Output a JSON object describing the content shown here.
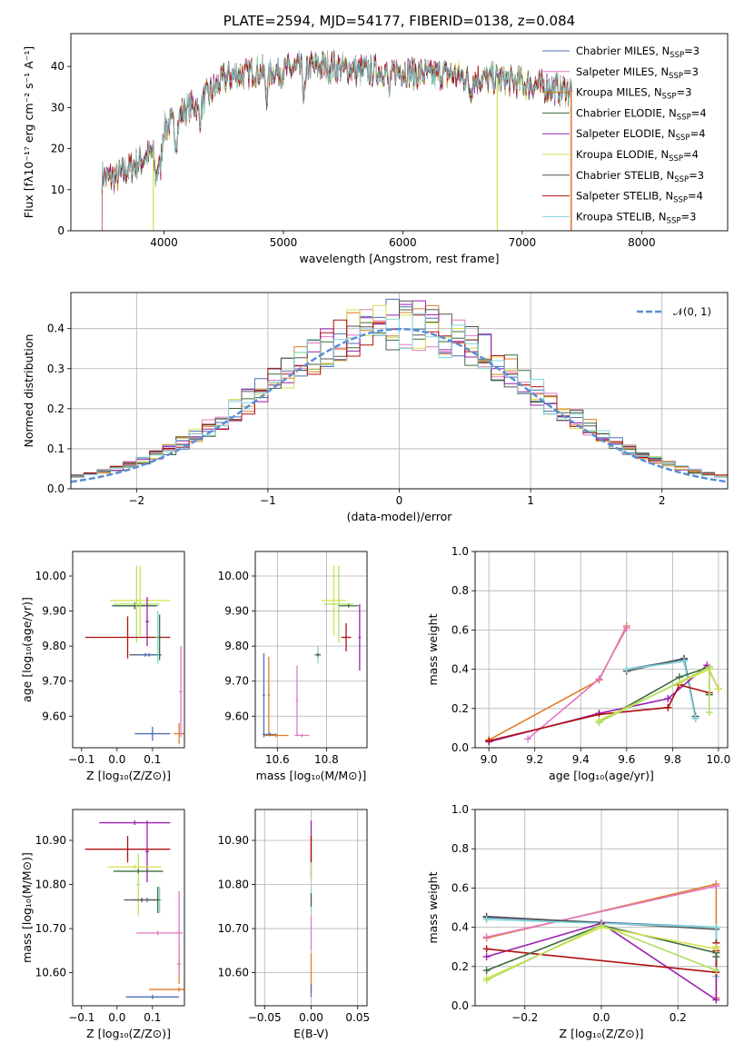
{
  "figure": {
    "title": "PLATE=2594, MJD=54177, FIBERID=0138, z=0.084"
  },
  "chart_data": [
    {
      "id": "spectrum",
      "type": "line",
      "title": "PLATE=2594, MJD=54177, FIBERID=0138, z=0.084",
      "xlabel": "wavelength [Angstrom, rest frame]",
      "ylabel": "Flux [fλ10⁻¹⁷ erg cm⁻² s⁻¹ A⁻¹]",
      "xlim": [
        3220,
        8720
      ],
      "ylim": [
        0,
        48
      ],
      "xticks": [
        4000,
        5000,
        6000,
        7000,
        8000
      ],
      "yticks": [
        0,
        10,
        20,
        30,
        40
      ],
      "grid": false,
      "legend_position": "top-right",
      "continuum": {
        "x": [
          3480,
          3600,
          3700,
          3800,
          3900,
          4000,
          4100,
          4200,
          4300,
          4400,
          4500,
          4600,
          4800,
          5000,
          5200,
          5400,
          5600,
          5800,
          6000,
          6200,
          6400,
          6600,
          6800,
          7000,
          7200,
          7400
        ],
        "y": [
          13,
          13,
          15,
          17,
          19,
          25,
          27,
          30,
          31,
          34,
          37,
          38,
          39,
          39,
          40,
          40,
          39,
          39,
          39,
          38,
          38,
          37,
          37,
          36,
          35,
          34
        ]
      },
      "series": [
        {
          "name": "Chabrier MILES, N_SSP=3",
          "color": "#4d6fb3"
        },
        {
          "name": "Salpeter MILES, N_SSP=3",
          "color": "#e377c2"
        },
        {
          "name": "Kroupa MILES, N_SSP=3",
          "color": "#c77d14"
        },
        {
          "name": "Chabrier ELODIE, N_SSP=4",
          "color": "#3d6b3d"
        },
        {
          "name": "Salpeter ELODIE, N_SSP=4",
          "color": "#9b1fb0"
        },
        {
          "name": "Kroupa ELODIE, N_SSP=4",
          "color": "#d4e04f"
        },
        {
          "name": "Chabrier STELIB, N_SSP=3",
          "color": "#555555"
        },
        {
          "name": "Salpeter STELIB, N_SSP=4",
          "color": "#b01010"
        },
        {
          "name": "Kroupa STELIB, N_SSP=3",
          "color": "#7fd6d6"
        }
      ]
    },
    {
      "id": "residuals",
      "type": "histogram",
      "xlabel": "(data-model)/error",
      "ylabel": "Normed distribution",
      "xlim": [
        -2.5,
        2.5
      ],
      "ylim": [
        0,
        0.49
      ],
      "xticks": [
        -2,
        -1,
        0,
        1,
        2
      ],
      "yticks": [
        0.0,
        0.1,
        0.2,
        0.3,
        0.4
      ],
      "grid": true,
      "legend_position": "top-right",
      "reference": {
        "name": "𝒩(0, 1)",
        "color": "#5b8ed6",
        "mean": 0,
        "sigma": 1
      },
      "bin_width": 0.1,
      "colors": [
        "#4d6fb3",
        "#e377c2",
        "#e07b28",
        "#3d6b3d",
        "#9b1fb0",
        "#d4e04f",
        "#555555",
        "#b01010",
        "#7fd6d6"
      ]
    },
    {
      "id": "age-vs-Z",
      "type": "scatter",
      "xlabel": "Z [log₁₀(Z/Z⊙)]",
      "ylabel": "age  [log₁₀(age/yr)]",
      "xlim": [
        -0.125,
        0.19
      ],
      "ylim": [
        9.51,
        10.07
      ],
      "xticks": [
        -0.1,
        0.0,
        0.1
      ],
      "yticks": [
        9.6,
        9.7,
        9.8,
        9.9,
        10.0
      ],
      "grid": false,
      "points": [
        {
          "x": 0.1,
          "y": 9.55,
          "xerr": 0.05,
          "yerr": 0.02,
          "color": "#4d6fb3"
        },
        {
          "x": 0.175,
          "y": 9.55,
          "xerr": 0.015,
          "yerr": 0.03,
          "color": "#e07b28"
        },
        {
          "x": 0.18,
          "y": 9.67,
          "xerr": 0.005,
          "yerr": 0.13,
          "color": "#e377c2"
        },
        {
          "x": 0.05,
          "y": 9.915,
          "xerr": 0.065,
          "yerr": 0.005,
          "color": "#4d6fb3"
        },
        {
          "x": 0.05,
          "y": 9.915,
          "xerr": 0.06,
          "yerr": 0.01,
          "color": "#3d6b3d"
        },
        {
          "x": 0.065,
          "y": 9.93,
          "xerr": 0.085,
          "yerr": 0.1,
          "color": "#d4e04f"
        },
        {
          "x": 0.055,
          "y": 9.92,
          "xerr": 0.065,
          "yerr": 0.11,
          "color": "#b0e060"
        },
        {
          "x": 0.085,
          "y": 9.87,
          "xerr": 0.005,
          "yerr": 0.07,
          "color": "#9b1fb0"
        },
        {
          "x": 0.03,
          "y": 9.825,
          "xerr": 0.12,
          "yerr": 0.06,
          "color": "#b01010"
        },
        {
          "x": 0.08,
          "y": 9.775,
          "xerr": 0.045,
          "yerr": 0.005,
          "color": "#555555"
        },
        {
          "x": 0.09,
          "y": 9.775,
          "xerr": 0.035,
          "yerr": 0.005,
          "color": "#4d6fb3"
        },
        {
          "x": 0.115,
          "y": 9.825,
          "xerr": 0.005,
          "yerr": 0.075,
          "color": "#7fd6d6"
        },
        {
          "x": 0.12,
          "y": 9.825,
          "xerr": 0.005,
          "yerr": 0.065,
          "color": "#3d6b3d"
        }
      ]
    },
    {
      "id": "age-vs-mass",
      "type": "scatter",
      "xlabel": "mass [log₁₀(M/M⊙)]",
      "ylabel": "",
      "xlim": [
        10.51,
        10.965
      ],
      "ylim": [
        9.51,
        10.07
      ],
      "xticks": [
        10.6,
        10.8
      ],
      "yticks": [
        9.6,
        9.7,
        9.8,
        9.9,
        10.0
      ],
      "grid": true,
      "points": [
        {
          "x": 10.545,
          "y": 9.66,
          "xerr": 0.005,
          "yerr": 0.12,
          "color": "#4d6fb3"
        },
        {
          "x": 10.565,
          "y": 9.66,
          "xerr": 0.005,
          "yerr": 0.11,
          "color": "#e07b28"
        },
        {
          "x": 10.68,
          "y": 9.645,
          "xerr": 0.005,
          "yerr": 0.1,
          "color": "#e377c2"
        },
        {
          "x": 10.57,
          "y": 9.548,
          "xerr": 0.03,
          "yerr": 0.005,
          "color": "#4d6fb3"
        },
        {
          "x": 10.595,
          "y": 9.545,
          "xerr": 0.05,
          "yerr": 0.005,
          "color": "#e07b28"
        },
        {
          "x": 10.7,
          "y": 9.545,
          "xerr": 0.03,
          "yerr": 0.005,
          "color": "#e377c2"
        },
        {
          "x": 10.85,
          "y": 9.92,
          "xerr": 0.06,
          "yerr": 0.11,
          "color": "#b0e060"
        },
        {
          "x": 10.83,
          "y": 9.93,
          "xerr": 0.05,
          "yerr": 0.1,
          "color": "#d4e04f"
        },
        {
          "x": 10.89,
          "y": 9.915,
          "xerr": 0.04,
          "yerr": 0.005,
          "color": "#3d6b3d"
        },
        {
          "x": 10.935,
          "y": 9.825,
          "xerr": 0.005,
          "yerr": 0.095,
          "color": "#9b1fb0"
        },
        {
          "x": 10.88,
          "y": 9.825,
          "xerr": 0.02,
          "yerr": 0.04,
          "color": "#b01010"
        },
        {
          "x": 10.765,
          "y": 9.775,
          "xerr": 0.015,
          "yerr": 0.025,
          "color": "#7fd6d6"
        },
        {
          "x": 10.765,
          "y": 9.775,
          "xerr": 0.01,
          "yerr": 0.005,
          "color": "#555555"
        }
      ]
    },
    {
      "id": "weight-vs-age",
      "type": "line",
      "xlabel": "age  [log₁₀(age/yr)]",
      "ylabel": "mass weight",
      "xlim": [
        8.94,
        10.04
      ],
      "ylim": [
        0,
        1
      ],
      "xticks": [
        9.0,
        9.2,
        9.4,
        9.6,
        9.8,
        10.0
      ],
      "yticks": [
        0.0,
        0.2,
        0.4,
        0.6,
        0.8,
        1.0
      ],
      "grid": true,
      "series": [
        {
          "color": "#e07b28",
          "x": [
            9.0,
            9.48,
            9.6
          ],
          "y": [
            0.04,
            0.345,
            0.62
          ]
        },
        {
          "color": "#e377c2",
          "x": [
            9.17,
            9.48,
            9.6
          ],
          "y": [
            0.045,
            0.35,
            0.61
          ]
        },
        {
          "color": "#4d6fb3",
          "x": [
            9.6,
            9.85,
            9.9
          ],
          "y": [
            0.4,
            0.45,
            0.15
          ]
        },
        {
          "color": "#555555",
          "x": [
            9.6,
            9.85,
            9.9
          ],
          "y": [
            0.39,
            0.455,
            0.16
          ]
        },
        {
          "color": "#7fd6d6",
          "x": [
            9.6,
            9.85,
            9.9
          ],
          "y": [
            0.4,
            0.44,
            0.15
          ]
        },
        {
          "color": "#9b1fb0",
          "x": [
            9.0,
            9.48,
            9.78,
            9.95,
            10.0
          ],
          "y": [
            0.03,
            0.175,
            0.25,
            0.42,
            0.3
          ]
        },
        {
          "color": "#b01010",
          "x": [
            9.0,
            9.48,
            9.78,
            9.83,
            9.96
          ],
          "y": [
            0.035,
            0.17,
            0.205,
            0.32,
            0.28
          ]
        },
        {
          "color": "#3d6b3d",
          "x": [
            9.48,
            9.83,
            9.96,
            9.96
          ],
          "y": [
            0.13,
            0.36,
            0.41,
            0.27
          ]
        },
        {
          "color": "#d4e04f",
          "x": [
            9.48,
            9.83,
            9.96,
            10.0
          ],
          "y": [
            0.14,
            0.33,
            0.4,
            0.3
          ]
        },
        {
          "color": "#b0e060",
          "x": [
            9.48,
            9.96,
            9.96
          ],
          "y": [
            0.13,
            0.41,
            0.18
          ]
        }
      ]
    },
    {
      "id": "mass-vs-Z",
      "type": "scatter",
      "xlabel": "Z [log₁₀(Z/Z⊙)]",
      "ylabel": "mass [log₁₀(M/M⊙)]",
      "xlim": [
        -0.125,
        0.19
      ],
      "ylim": [
        10.525,
        10.97
      ],
      "xticks": [
        -0.1,
        0.0,
        0.1
      ],
      "yticks": [
        10.6,
        10.7,
        10.8,
        10.9
      ],
      "grid": false,
      "points": [
        {
          "x": 0.1,
          "y": 10.545,
          "xerr": 0.075,
          "yerr": 0.005,
          "color": "#4d6fb3"
        },
        {
          "x": 0.175,
          "y": 10.562,
          "xerr": 0.085,
          "yerr": 0.005,
          "color": "#e07b28"
        },
        {
          "x": 0.175,
          "y": 10.62,
          "xerr": 0.005,
          "yerr": 0.045,
          "color": "#e07b28"
        },
        {
          "x": 0.175,
          "y": 10.69,
          "xerr": 0.01,
          "yerr": 0.095,
          "color": "#e377c2"
        },
        {
          "x": 0.115,
          "y": 10.69,
          "xerr": 0.06,
          "yerr": 0.005,
          "color": "#e377c2"
        },
        {
          "x": 0.05,
          "y": 10.94,
          "xerr": 0.1,
          "yerr": 0.005,
          "color": "#9b1fb0"
        },
        {
          "x": 0.085,
          "y": 10.875,
          "xerr": 0.005,
          "yerr": 0.07,
          "color": "#9b1fb0"
        },
        {
          "x": 0.03,
          "y": 10.88,
          "xerr": 0.12,
          "yerr": 0.03,
          "color": "#b01010"
        },
        {
          "x": 0.05,
          "y": 10.84,
          "xerr": 0.075,
          "yerr": 0.005,
          "color": "#d4e04f"
        },
        {
          "x": 0.06,
          "y": 10.8,
          "xerr": 0.005,
          "yerr": 0.07,
          "color": "#b0e060"
        },
        {
          "x": 0.06,
          "y": 10.83,
          "xerr": 0.07,
          "yerr": 0.005,
          "color": "#3d6b3d"
        },
        {
          "x": 0.085,
          "y": 10.765,
          "xerr": 0.04,
          "yerr": 0.005,
          "color": "#4d6fb3"
        },
        {
          "x": 0.07,
          "y": 10.765,
          "xerr": 0.05,
          "yerr": 0.005,
          "color": "#555555"
        },
        {
          "x": 0.12,
          "y": 10.765,
          "xerr": 0.005,
          "yerr": 0.03,
          "color": "#7fd6d6"
        },
        {
          "x": 0.115,
          "y": 10.765,
          "xerr": 0.005,
          "yerr": 0.03,
          "color": "#3d6b3d"
        }
      ]
    },
    {
      "id": "mass-vs-ebv",
      "type": "scatter",
      "xlabel": "E(B-V)",
      "ylabel": "",
      "xlim": [
        -0.06,
        0.06
      ],
      "ylim": [
        10.525,
        10.97
      ],
      "xticks": [
        -0.05,
        0.0,
        0.05
      ],
      "yticks": [
        10.6,
        10.7,
        10.8,
        10.9
      ],
      "grid": true,
      "points": [
        {
          "x": 0,
          "y": 10.88,
          "xerr": 0,
          "yerr": 0.065,
          "color": "#9b1fb0"
        },
        {
          "x": 0,
          "y": 10.88,
          "xerr": 0,
          "yerr": 0.03,
          "color": "#b01010"
        },
        {
          "x": 0,
          "y": 10.83,
          "xerr": 0,
          "yerr": 0.02,
          "color": "#b0e060"
        },
        {
          "x": 0,
          "y": 10.765,
          "xerr": 0,
          "yerr": 0.03,
          "color": "#7fd6d6"
        },
        {
          "x": 0,
          "y": 10.765,
          "xerr": 0,
          "yerr": 0.015,
          "color": "#555555"
        },
        {
          "x": 0,
          "y": 10.69,
          "xerr": 0,
          "yerr": 0.04,
          "color": "#e377c2"
        },
        {
          "x": 0,
          "y": 10.6,
          "xerr": 0,
          "yerr": 0.045,
          "color": "#e07b28"
        },
        {
          "x": 0,
          "y": 10.56,
          "xerr": 0,
          "yerr": 0.015,
          "color": "#4d6fb3"
        }
      ]
    },
    {
      "id": "weight-vs-Z",
      "type": "line",
      "xlabel": "Z [log₁₀(Z/Z⊙)]",
      "ylabel": "mass weight",
      "xlim": [
        -0.33,
        0.33
      ],
      "ylim": [
        0,
        1
      ],
      "xticks": [
        -0.2,
        0.0,
        0.2
      ],
      "yticks": [
        0.0,
        0.2,
        0.4,
        0.6,
        0.8,
        1.0
      ],
      "grid": true,
      "series": [
        {
          "color": "#e07b28",
          "x": [
            -0.3,
            0.3,
            0.3
          ],
          "y": [
            0.345,
            0.62,
            0.04
          ]
        },
        {
          "color": "#e377c2",
          "x": [
            -0.3,
            0.3
          ],
          "y": [
            0.35,
            0.61
          ]
        },
        {
          "color": "#4d6fb3",
          "x": [
            -0.3,
            0.3,
            0.3
          ],
          "y": [
            0.45,
            0.4,
            0.15
          ]
        },
        {
          "color": "#555555",
          "x": [
            -0.3,
            0.3
          ],
          "y": [
            0.455,
            0.39
          ]
        },
        {
          "color": "#7fd6d6",
          "x": [
            -0.3,
            0.3,
            0.3
          ],
          "y": [
            0.44,
            0.4,
            0.15
          ]
        },
        {
          "color": "#9b1fb0",
          "x": [
            -0.3,
            0.0,
            0.3,
            0.3
          ],
          "y": [
            0.25,
            0.42,
            0.03,
            0.3
          ]
        },
        {
          "color": "#b01010",
          "x": [
            -0.3,
            0.3,
            0.3,
            0.3
          ],
          "y": [
            0.29,
            0.17,
            0.28,
            0.32
          ]
        },
        {
          "color": "#3d6b3d",
          "x": [
            -0.3,
            0.0,
            0.3,
            0.3
          ],
          "y": [
            0.18,
            0.41,
            0.27,
            0.25
          ]
        },
        {
          "color": "#d4e04f",
          "x": [
            -0.3,
            0.0,
            0.3,
            0.3
          ],
          "y": [
            0.14,
            0.4,
            0.29,
            0.3
          ]
        },
        {
          "color": "#b0e060",
          "x": [
            -0.3,
            0.0,
            0.3
          ],
          "y": [
            0.13,
            0.41,
            0.18
          ]
        }
      ]
    }
  ]
}
